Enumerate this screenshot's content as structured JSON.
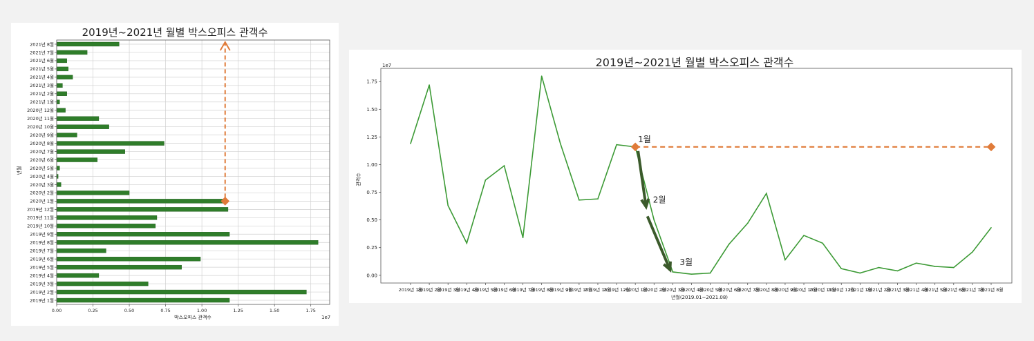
{
  "chart_data": [
    {
      "type": "bar",
      "orientation": "horizontal",
      "title": "2019년~2021년 월별 박스오피스 관객수",
      "xlabel": "박스오피스 관객수",
      "ylabel": "년월",
      "offset_label": "1e7",
      "xlim": [
        0,
        1.88
      ],
      "xticks": [
        "0.00",
        "0.25",
        "0.50",
        "0.75",
        "1.00",
        "1.25",
        "1.50",
        "1.75"
      ],
      "grid": true,
      "bar_color": "#2f7d2a",
      "categories": [
        "2019년 1월",
        "2019년 2월",
        "2019년 3월",
        "2019년 4월",
        "2019년 5월",
        "2019년 6월",
        "2019년 7월",
        "2019년 8월",
        "2019년 9월",
        "2019년 10월",
        "2019년 11월",
        "2019년 12월",
        "2020년 1월",
        "2020년 2월",
        "2020년 3월",
        "2020년 4월",
        "2020년 5월",
        "2020년 6월",
        "2020년 7월",
        "2020년 8월",
        "2020년 9월",
        "2020년 10월",
        "2020년 11월",
        "2020년 12월",
        "2021년 1월",
        "2021년 2월",
        "2021년 3월",
        "2021년 4월",
        "2021년 5월",
        "2021년 6월",
        "2021년 7월",
        "2021년 8월"
      ],
      "values": [
        1.19,
        1.72,
        0.63,
        0.29,
        0.86,
        0.99,
        0.34,
        1.8,
        1.19,
        0.68,
        0.69,
        1.18,
        1.16,
        0.5,
        0.03,
        0.01,
        0.02,
        0.28,
        0.47,
        0.74,
        0.14,
        0.36,
        0.29,
        0.06,
        0.02,
        0.07,
        0.04,
        0.11,
        0.08,
        0.07,
        0.21,
        0.43
      ],
      "annotation": {
        "type": "dashed-arrow",
        "color": "#e07b39",
        "from_category": "2020년 1월",
        "value": 1.16,
        "direction": "up"
      }
    },
    {
      "type": "line",
      "title": "2019년~2021년 월별 박스오피스 관객수",
      "xlabel": "년월(2019.01~2021.08)",
      "ylabel": "관객수",
      "offset_label": "1e7",
      "ylim": [
        -0.07,
        1.87
      ],
      "yticks": [
        "0.00",
        "0.25",
        "0.50",
        "0.75",
        "1.00",
        "1.25",
        "1.50",
        "1.75"
      ],
      "line_color": "#3c9a35",
      "x": [
        "2019년 1월",
        "2019년 2월",
        "2019년 3월",
        "2019년 4월",
        "2019년 5월",
        "2019년 6월",
        "2019년 7월",
        "2019년 8월",
        "2019년 9월",
        "2019년 10월",
        "2019년 11월",
        "2019년 12월",
        "2020년 1월",
        "2020년 2월",
        "2020년 3월",
        "2020년 4월",
        "2020년 5월",
        "2020년 6월",
        "2020년 7월",
        "2020년 8월",
        "2020년 9월",
        "2020년 10월",
        "2020년 11월",
        "2020년 12월",
        "2021년 1월",
        "2021년 2월",
        "2021년 3월",
        "2021년 4월",
        "2021년 5월",
        "2021년 6월",
        "2021년 7월",
        "2021년 8월"
      ],
      "values": [
        1.19,
        1.72,
        0.63,
        0.29,
        0.86,
        0.99,
        0.34,
        1.8,
        1.19,
        0.68,
        0.69,
        1.18,
        1.16,
        0.5,
        0.03,
        0.01,
        0.02,
        0.28,
        0.47,
        0.74,
        0.14,
        0.36,
        0.29,
        0.06,
        0.02,
        0.07,
        0.04,
        0.11,
        0.08,
        0.07,
        0.21,
        0.43
      ],
      "annotations": [
        {
          "text": "1월",
          "type": "label"
        },
        {
          "text": "2월",
          "type": "label"
        },
        {
          "text": "3월",
          "type": "label"
        },
        {
          "type": "dashed-line",
          "color": "#e07b39",
          "value": 1.16
        },
        {
          "type": "arrow",
          "color": "#3b5a2b",
          "from": "1월",
          "to": "2월"
        },
        {
          "type": "arrow",
          "color": "#3b5a2b",
          "from": "2월",
          "to": "3월"
        }
      ]
    }
  ]
}
